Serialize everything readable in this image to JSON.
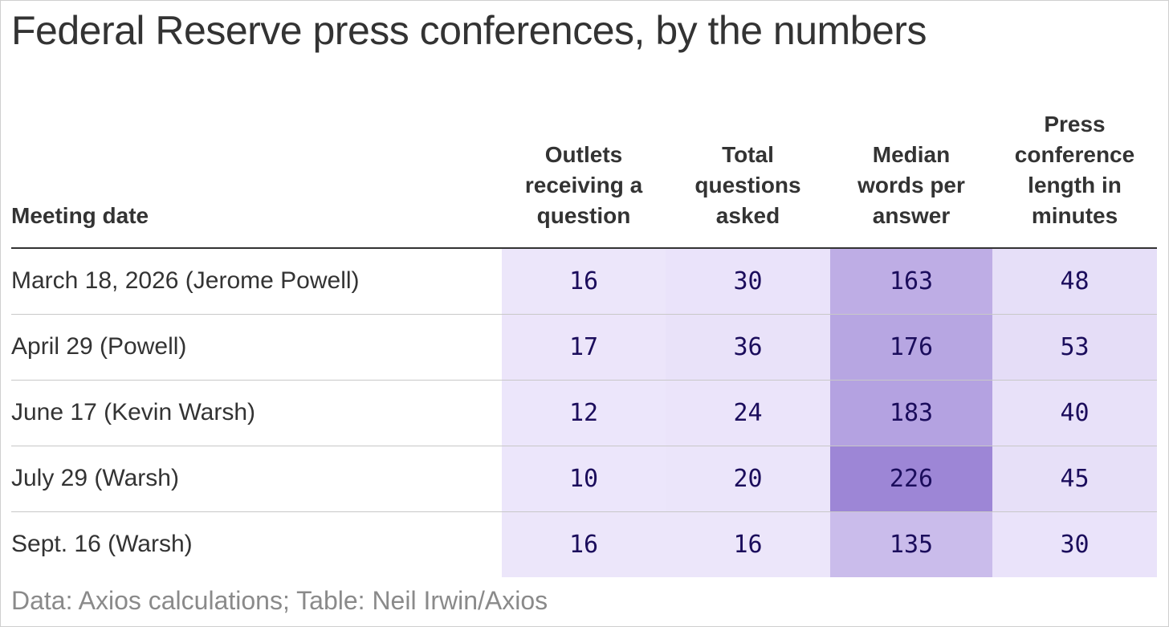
{
  "chart_data": {
    "type": "table",
    "title": "Federal Reserve press conferences, by the numbers",
    "columns": [
      "Meeting date",
      "Outlets\nreceiving a\nquestion",
      "Total\nquestions\nasked",
      "Median\nwords per\nanswer",
      "Press\nconference\nlength in\nminutes"
    ],
    "rows": [
      {
        "date": "March 18, 2026 (Jerome Powell)",
        "values": [
          16,
          30,
          163,
          48
        ]
      },
      {
        "date": "April 29 (Powell)",
        "values": [
          17,
          36,
          176,
          53
        ]
      },
      {
        "date": "June 17 (Kevin Warsh)",
        "values": [
          12,
          24,
          183,
          40
        ]
      },
      {
        "date": "July 29 (Warsh)",
        "values": [
          10,
          20,
          226,
          45
        ]
      },
      {
        "date": "Sept. 16 (Warsh)",
        "values": [
          16,
          16,
          135,
          30
        ]
      }
    ],
    "heatmap_colors": {
      "low": "#ede7fb",
      "high": "#9d86d6"
    },
    "source": "Data: Axios calculations; Table: Neil Irwin/Axios"
  }
}
